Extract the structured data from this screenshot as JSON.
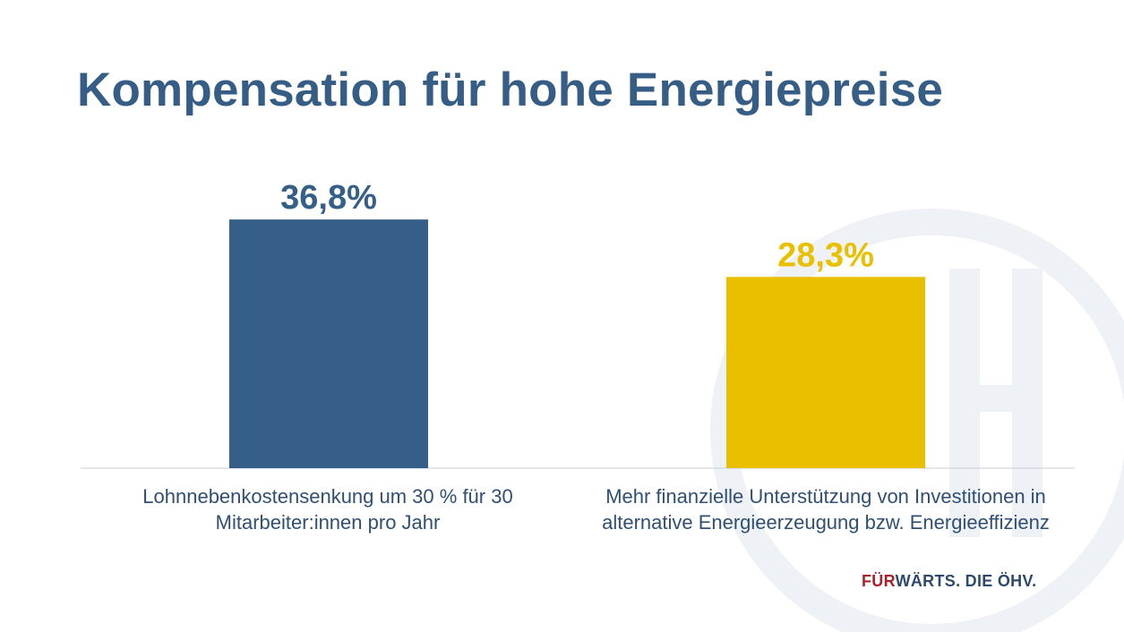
{
  "title": "Kompensation für hohe Energiepreise",
  "footer": {
    "part_a": "FÜR",
    "part_b": "WÄRTS. DIE ÖHV."
  },
  "colors": {
    "bar_1": "#365f87",
    "bar_2": "#e9bf00",
    "title": "#355d85",
    "footer_accent": "#a8212b",
    "watermark": "#eef1f5"
  },
  "chart_data": {
    "type": "bar",
    "categories": [
      "Lohnnebenkostensenkung um 30 % für 30 Mitarbeiter:innen pro Jahr",
      "Mehr finanzielle Unterstützung von Investitionen in alternative Energieerzeugung bzw. Energieeffizienz"
    ],
    "values": [
      36.8,
      28.3
    ],
    "value_labels": [
      "36,8%",
      "28,3%"
    ],
    "ylim": [
      0,
      40
    ],
    "grid": false,
    "legend": "none"
  }
}
